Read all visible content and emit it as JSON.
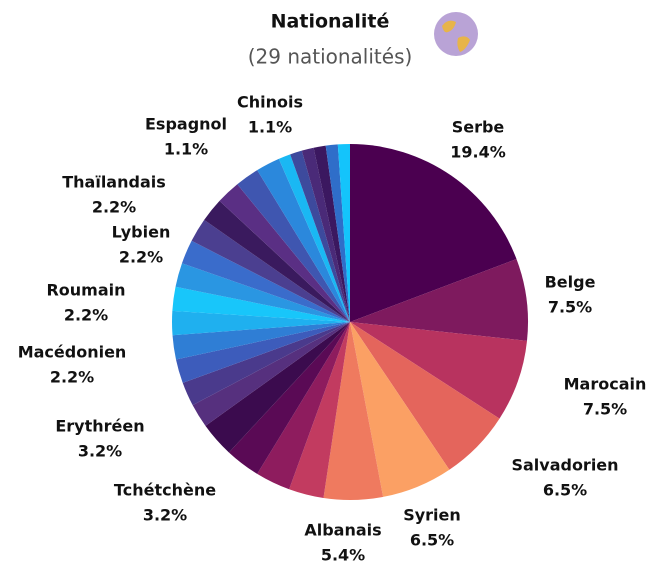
{
  "chart_data": {
    "type": "pie",
    "title": "Nationalité",
    "subtitle": "(29 nationalités)",
    "categories": [
      "Serbe",
      "Belge",
      "Marocain",
      "Salvadorien",
      "Syrien",
      "Albanais",
      "Tchétchène",
      null,
      "Erythréen",
      null,
      null,
      "Macédonien",
      null,
      null,
      "Roumain",
      null,
      null,
      "Lybien",
      null,
      null,
      "Thaïlandais",
      null,
      null,
      "Espagnol",
      null,
      null,
      null,
      null,
      "Chinois"
    ],
    "values": [
      19.4,
      7.5,
      7.5,
      6.5,
      6.5,
      5.4,
      3.2,
      3.2,
      3.2,
      3.2,
      2.2,
      2.2,
      2.2,
      2.2,
      2.2,
      2.2,
      2.2,
      2.2,
      2.2,
      2.2,
      2.2,
      2.2,
      2.2,
      1.1,
      1.1,
      1.1,
      1.1,
      1.1,
      1.1
    ],
    "value_labels": [
      "19.4%",
      "7.5%",
      "7.5%",
      "6.5%",
      "6.5%",
      "5.4%",
      "3.2%",
      null,
      "3.2%",
      null,
      null,
      "2.2%",
      null,
      null,
      "2.2%",
      null,
      null,
      "2.2%",
      null,
      null,
      "2.2%",
      null,
      null,
      "1.1%",
      null,
      null,
      null,
      null,
      "1.1%"
    ],
    "colors": [
      "#4b0050",
      "#7e1a5e",
      "#b8335f",
      "#e4655c",
      "#fba064",
      "#ef7a5f",
      "#c23b60",
      "#8e1c5e",
      "#5a0a55",
      "#3b0b4e",
      "#56307e",
      "#4a3a8c",
      "#3d5cbb",
      "#2f7ed5",
      "#1fb0ef",
      "#18c6fa",
      "#2a96e2",
      "#3a6ccb",
      "#4b3f90",
      "#3a1a5e",
      "#5a2f84",
      "#3f56b0",
      "#2b88dc",
      "#1ab8f3",
      "#3d4a9d",
      "#4a2a78",
      "#3b1860",
      "#2f6ec9",
      "#14c4fb"
    ]
  }
}
